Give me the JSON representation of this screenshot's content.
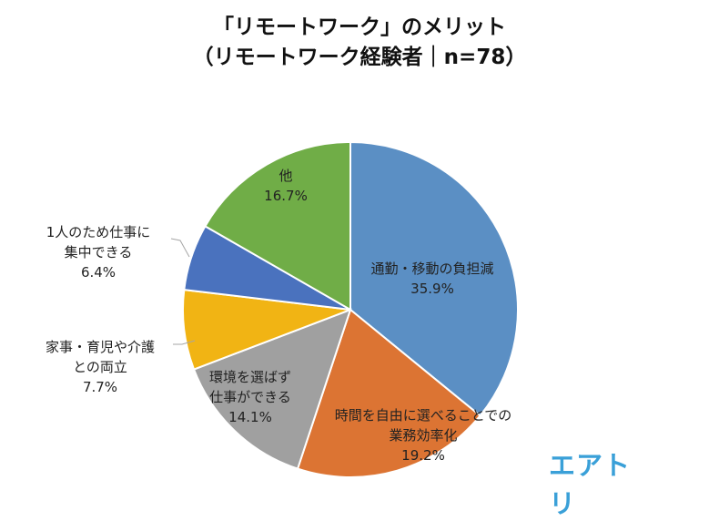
{
  "title_line1": "「リモートワーク」のメリット",
  "title_line2": "（リモートワーク経験者｜n=78）",
  "logo_text": "エアトリ",
  "chart_data": {
    "type": "pie",
    "title": "「リモートワーク」のメリット（リモートワーク経験者｜n=78）",
    "start_angle_deg": 0,
    "direction": "clockwise",
    "slices": [
      {
        "label_lines": [
          "通勤・移動の負担減"
        ],
        "value": 35.9,
        "value_text": "35.9%",
        "color": "#5b8fc4"
      },
      {
        "label_lines": [
          "時間を自由に選べることでの",
          "業務効率化"
        ],
        "value": 19.2,
        "value_text": "19.2%",
        "color": "#dc7433"
      },
      {
        "label_lines": [
          "環境を選ばず",
          "仕事ができる"
        ],
        "value": 14.1,
        "value_text": "14.1%",
        "color": "#a0a0a0"
      },
      {
        "label_lines": [
          "家事・育児や介護",
          "との両立"
        ],
        "value": 7.7,
        "value_text": "7.7%",
        "color": "#f1b414"
      },
      {
        "label_lines": [
          "1人のため仕事に",
          "集中できる"
        ],
        "value": 6.4,
        "value_text": "6.4%",
        "color": "#4a72be"
      },
      {
        "label_lines": [
          "他"
        ],
        "value": 16.7,
        "value_text": "16.7%",
        "color": "#70ad47"
      }
    ]
  }
}
